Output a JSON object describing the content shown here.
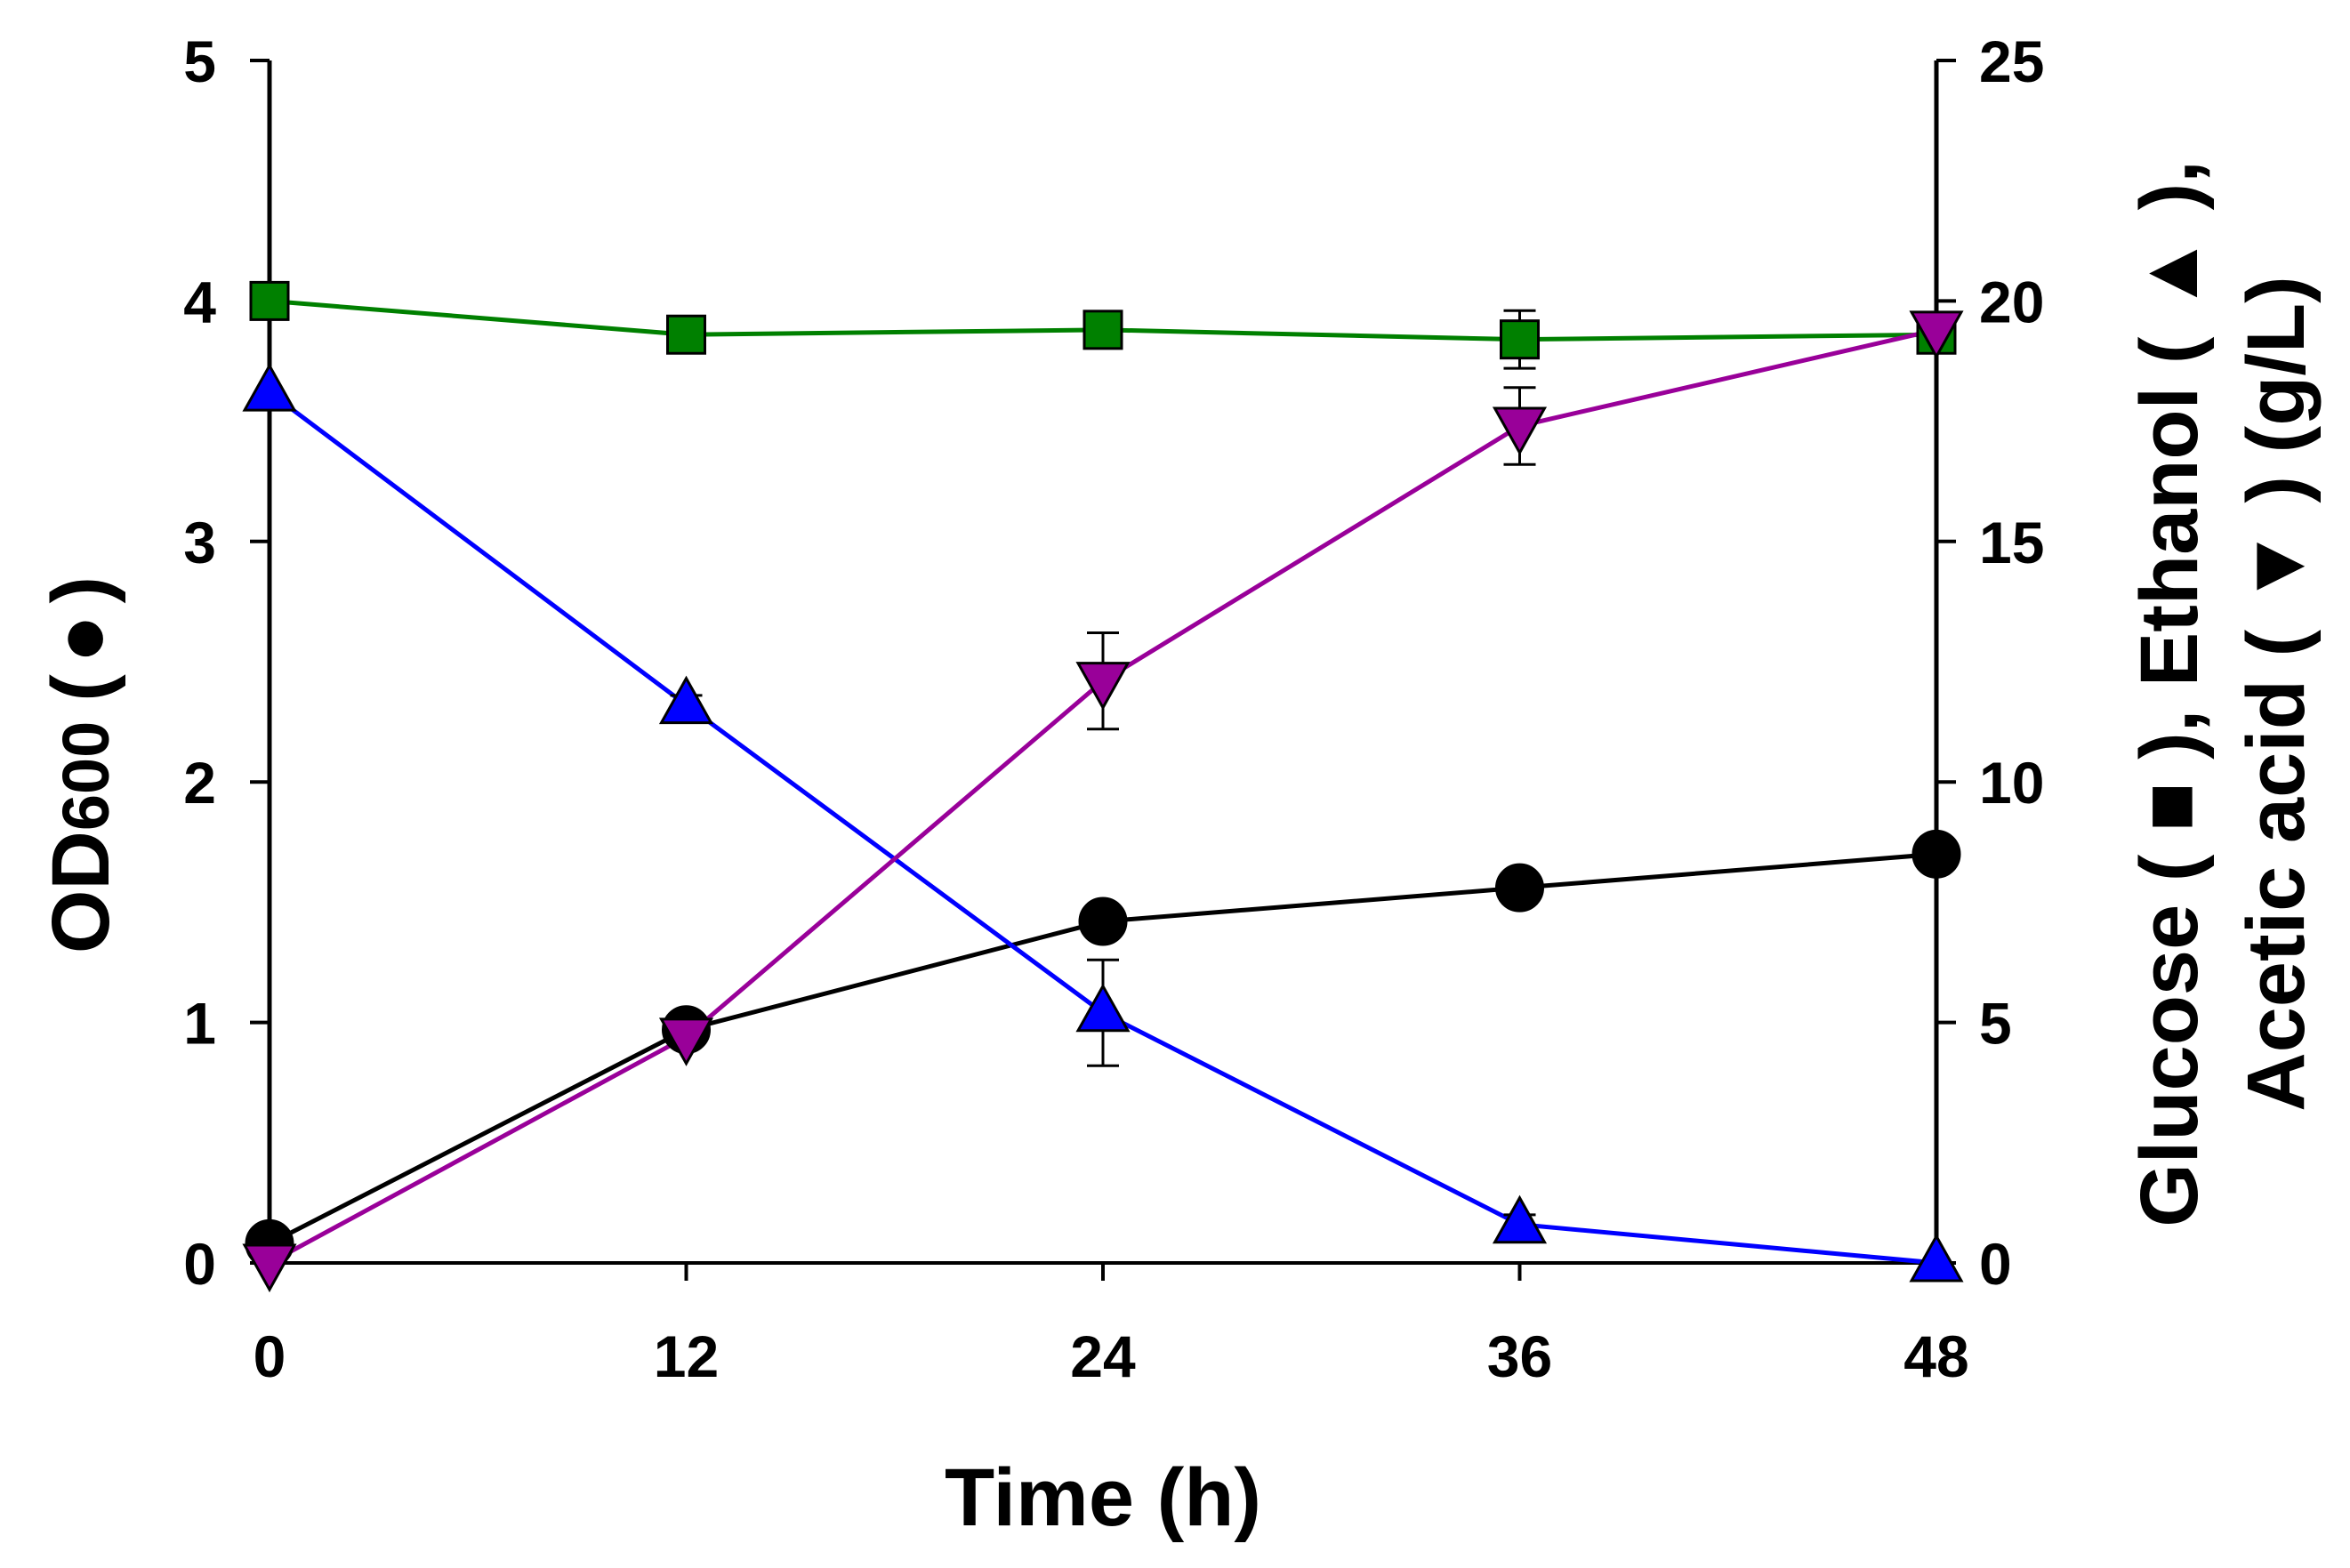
{
  "chart_data": {
    "type": "line",
    "xlabel": "Time (h)",
    "ylabel_left": {
      "main": "OD",
      "sub": "600",
      "marker_open": "(",
      "marker": "●",
      "marker_close": ")"
    },
    "ylabel_right": {
      "line1": "Glucose ( ■ ), Ethanol ( ▲ ),",
      "line2": "Acetic acid ( ▼ ) (g/L)"
    },
    "x": [
      0,
      12,
      24,
      36,
      48
    ],
    "x_ticks": [
      "0",
      "12",
      "24",
      "36",
      "48"
    ],
    "xlim": [
      0,
      48
    ],
    "ylim_left": [
      0,
      5
    ],
    "ylim_right": [
      0,
      25
    ],
    "y_ticks_left": [
      "0",
      "1",
      "2",
      "3",
      "4",
      "5"
    ],
    "y_ticks_right": [
      "0",
      "5",
      "10",
      "15",
      "20",
      "25"
    ],
    "grid": false,
    "series": [
      {
        "name": "OD600",
        "axis": "left",
        "marker": "circle",
        "color": "#000000",
        "marker_color": "#000000",
        "values": [
          0.08,
          0.97,
          1.42,
          1.56,
          1.7
        ],
        "errors": [
          0,
          0,
          0,
          0,
          0
        ]
      },
      {
        "name": "Glucose",
        "axis": "right",
        "marker": "square",
        "color": "#008000",
        "marker_color": "#008000",
        "values": [
          20.0,
          19.3,
          19.4,
          19.2,
          19.3
        ],
        "errors": [
          0,
          0,
          0,
          0.6,
          0
        ]
      },
      {
        "name": "Ethanol",
        "axis": "right",
        "marker": "triangle-up",
        "color": "#0000ff",
        "marker_color": "#0000ff",
        "values": [
          18.1,
          11.6,
          5.2,
          0.8,
          0.0
        ],
        "errors": [
          0,
          0.2,
          1.1,
          0.2,
          0
        ]
      },
      {
        "name": "Acetic acid",
        "axis": "right",
        "marker": "triangle-down",
        "color": "#990099",
        "marker_color": "#990099",
        "values": [
          0.0,
          4.7,
          12.1,
          17.4,
          19.4
        ],
        "errors": [
          0,
          0,
          1.0,
          0.8,
          0.2
        ]
      }
    ]
  }
}
